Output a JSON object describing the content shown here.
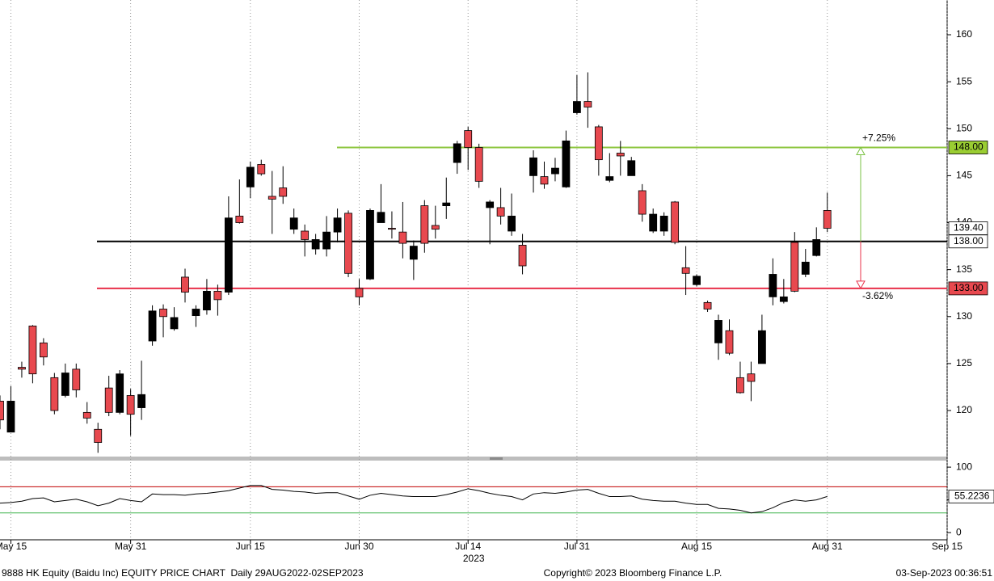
{
  "chart_data": [
    {
      "type": "candlestick",
      "x": [
        "2023-05-12",
        "2023-05-15",
        "2023-05-16",
        "2023-05-17",
        "2023-05-18",
        "2023-05-19",
        "2023-05-22",
        "2023-05-23",
        "2023-05-24",
        "2023-05-25",
        "2023-05-29",
        "2023-05-30",
        "2023-05-31",
        "2023-06-01",
        "2023-06-02",
        "2023-06-05",
        "2023-06-06",
        "2023-06-07",
        "2023-06-08",
        "2023-06-09",
        "2023-06-12",
        "2023-06-13",
        "2023-06-14",
        "2023-06-15",
        "2023-06-16",
        "2023-06-19",
        "2023-06-20",
        "2023-06-21",
        "2023-06-23",
        "2023-06-26",
        "2023-06-27",
        "2023-06-28",
        "2023-06-29",
        "2023-06-30",
        "2023-07-03",
        "2023-07-04",
        "2023-07-05",
        "2023-07-06",
        "2023-07-07",
        "2023-07-10",
        "2023-07-11",
        "2023-07-12",
        "2023-07-13",
        "2023-07-14",
        "2023-07-18",
        "2023-07-19",
        "2023-07-20",
        "2023-07-21",
        "2023-07-24",
        "2023-07-25",
        "2023-07-26",
        "2023-07-27",
        "2023-07-28",
        "2023-07-31",
        "2023-08-01",
        "2023-08-02",
        "2023-08-03",
        "2023-08-04",
        "2023-08-07",
        "2023-08-08",
        "2023-08-09",
        "2023-08-10",
        "2023-08-11",
        "2023-08-14",
        "2023-08-15",
        "2023-08-16",
        "2023-08-17",
        "2023-08-18",
        "2023-08-21",
        "2023-08-22",
        "2023-08-23",
        "2023-08-24",
        "2023-08-25",
        "2023-08-28",
        "2023-08-29",
        "2023-08-30",
        "2023-08-31"
      ],
      "open": [
        121.0,
        117.7,
        124.6,
        129.0,
        127.2,
        123.5,
        121.6,
        124.4,
        119.8,
        118.0,
        122.4,
        119.8,
        121.6,
        120.3,
        127.4,
        130.8,
        128.7,
        134.2,
        130.1,
        130.7,
        132.7,
        132.6,
        140.7,
        143.8,
        146.2,
        142.8,
        143.7,
        139.3,
        139.1,
        137.2,
        137.2,
        139.0,
        141.0,
        133.0,
        134.0,
        140.0,
        139.4,
        139.0,
        136.1,
        141.8,
        139.7,
        141.8,
        146.4,
        149.8,
        148.0,
        141.6,
        141.6,
        139.1,
        137.6,
        145.0,
        144.9,
        145.2,
        143.8,
        151.7,
        152.9,
        150.2,
        144.5,
        147.4,
        145.0,
        143.4,
        139.1,
        139.1,
        142.2,
        135.2,
        133.4,
        131.5,
        127.2,
        128.5,
        123.5,
        123.9,
        125.0,
        132.1,
        131.6,
        137.9,
        134.5,
        136.5,
        141.3
      ],
      "high": [
        121.6,
        122.6,
        125.2,
        129.1,
        127.7,
        124.0,
        125.0,
        125.0,
        120.9,
        118.7,
        123.7,
        124.3,
        122.3,
        125.3,
        131.2,
        131.3,
        131.0,
        135.1,
        131.2,
        134.0,
        133.4,
        142.8,
        144.6,
        146.5,
        146.7,
        145.5,
        146.0,
        141.5,
        139.8,
        138.8,
        140.7,
        141.5,
        141.3,
        134.0,
        141.5,
        144.1,
        141.2,
        142.2,
        138.1,
        142.4,
        141.8,
        144.8,
        148.7,
        150.2,
        148.4,
        142.4,
        143.7,
        143.1,
        138.8,
        147.7,
        146.5,
        146.9,
        149.8,
        155.7,
        156.0,
        150.4,
        147.4,
        148.7,
        147.0,
        144.1,
        141.5,
        141.1,
        142.3,
        137.5,
        134.5,
        131.7,
        130.2,
        129.7,
        125.2,
        125.2,
        130.2,
        136.2,
        134.0,
        139.0,
        137.2,
        139.5,
        143.2
      ],
      "low": [
        118.0,
        117.7,
        123.5,
        122.9,
        124.8,
        119.6,
        121.4,
        121.4,
        118.6,
        115.5,
        119.4,
        119.6,
        117.3,
        119.0,
        126.9,
        127.8,
        128.5,
        131.5,
        128.9,
        130.2,
        130.1,
        132.3,
        139.9,
        142.6,
        145.0,
        138.8,
        142.0,
        138.8,
        136.4,
        136.6,
        136.4,
        137.9,
        134.2,
        131.2,
        133.9,
        140.0,
        138.3,
        136.2,
        133.9,
        136.8,
        138.3,
        140.4,
        145.2,
        145.6,
        143.7,
        137.7,
        139.8,
        138.6,
        134.5,
        143.2,
        143.6,
        144.4,
        143.7,
        151.5,
        150.1,
        145.0,
        144.3,
        145.0,
        145.0,
        140.1,
        138.9,
        138.6,
        137.7,
        132.3,
        133.2,
        130.5,
        125.4,
        125.9,
        121.8,
        121.0,
        125.0,
        131.2,
        131.4,
        132.6,
        134.2,
        136.4,
        139.0
      ],
      "close": [
        119.0,
        121.0,
        124.4,
        123.9,
        125.7,
        120.0,
        124.0,
        122.2,
        119.2,
        116.6,
        119.8,
        123.9,
        119.6,
        121.7,
        130.6,
        130.0,
        129.9,
        132.6,
        130.8,
        132.7,
        131.8,
        140.5,
        140.0,
        145.9,
        145.2,
        142.5,
        142.8,
        140.5,
        138.2,
        138.2,
        139.0,
        140.5,
        134.6,
        132.1,
        141.3,
        141.1,
        139.3,
        137.8,
        137.5,
        137.8,
        139.3,
        142.1,
        148.4,
        148.0,
        144.4,
        142.2,
        140.7,
        140.7,
        135.4,
        146.9,
        144.1,
        145.8,
        148.7,
        152.9,
        152.3,
        146.7,
        144.9,
        147.1,
        146.6,
        140.9,
        140.9,
        140.7,
        137.9,
        134.6,
        134.3,
        130.8,
        129.6,
        126.1,
        121.9,
        123.1,
        128.5,
        134.5,
        132.1,
        132.7,
        135.8,
        138.2,
        139.4
      ],
      "up_color": "#000000",
      "down_color": "#e8494f",
      "ylim": [
        115.1,
        163.7
      ],
      "yticks": [
        120,
        125,
        130,
        135,
        140,
        145,
        150,
        155,
        160
      ],
      "xticks": [
        {
          "value": "2023-05-15",
          "label": "May 15"
        },
        {
          "value": "2023-05-31",
          "label": "May 31"
        },
        {
          "value": "2023-06-15",
          "label": "Jun 15"
        },
        {
          "value": "2023-06-30",
          "label": "Jun 30"
        },
        {
          "value": "2023-07-14",
          "label": "Jul 14"
        },
        {
          "value": "2023-07-31",
          "label": "Jul 31"
        },
        {
          "value": "2023-08-15",
          "label": "Aug 15"
        },
        {
          "value": "2023-08-31",
          "label": "Aug 31"
        },
        {
          "value": "2023-09-15",
          "label": "Sep 15"
        }
      ],
      "year_label": "2023",
      "reference_lines": [
        {
          "value": 148,
          "label": "148.00",
          "color": "#8dc63f",
          "label_fill": "#9acd32"
        },
        {
          "value": 138,
          "label": "138.00",
          "color": "#000000",
          "label_fill": "#ffffff"
        },
        {
          "value": 133,
          "label": "133.00",
          "color": "#e8304a",
          "label_fill": "#e8494f"
        }
      ],
      "last_price": {
        "value": 139.4,
        "label": "139.40"
      },
      "annotations": [
        {
          "text": "+7.25%",
          "color": "#7ac143"
        },
        {
          "text": "-3.62%",
          "color": "#e8304a"
        }
      ]
    },
    {
      "type": "line",
      "values": [
        45,
        46,
        48,
        52,
        53,
        47,
        49,
        51,
        47,
        41,
        45,
        52,
        49,
        47,
        59,
        58,
        58,
        57,
        59,
        60,
        62,
        64,
        68,
        72,
        72,
        66,
        65,
        63,
        62,
        60,
        61,
        61,
        56,
        51,
        57,
        60,
        58,
        56,
        55,
        55,
        55,
        58,
        62,
        67,
        64,
        60,
        57,
        55,
        50,
        59,
        61,
        60,
        62,
        65,
        66,
        60,
        55,
        55,
        56,
        51,
        49,
        48,
        48,
        45,
        43,
        43,
        37,
        36,
        34,
        30,
        32,
        38,
        46,
        50,
        48,
        50,
        55.2236
      ],
      "color": "#000000",
      "ylim": [
        -11,
        110
      ],
      "yticks": [
        0,
        50,
        100
      ],
      "hlines": [
        {
          "value": 70,
          "color": "#c00000"
        },
        {
          "value": 30,
          "color": "#3cb34a"
        }
      ]
    }
  ],
  "footer": {
    "left": "9888 HK Equity (Baidu Inc) EQUITY PRICE CHART  Daily 29AUG2022-02SEP2023",
    "center": "Copyright© 2023 Bloomberg Finance L.P.",
    "right": "03-Sep-2023 00:36:51"
  }
}
